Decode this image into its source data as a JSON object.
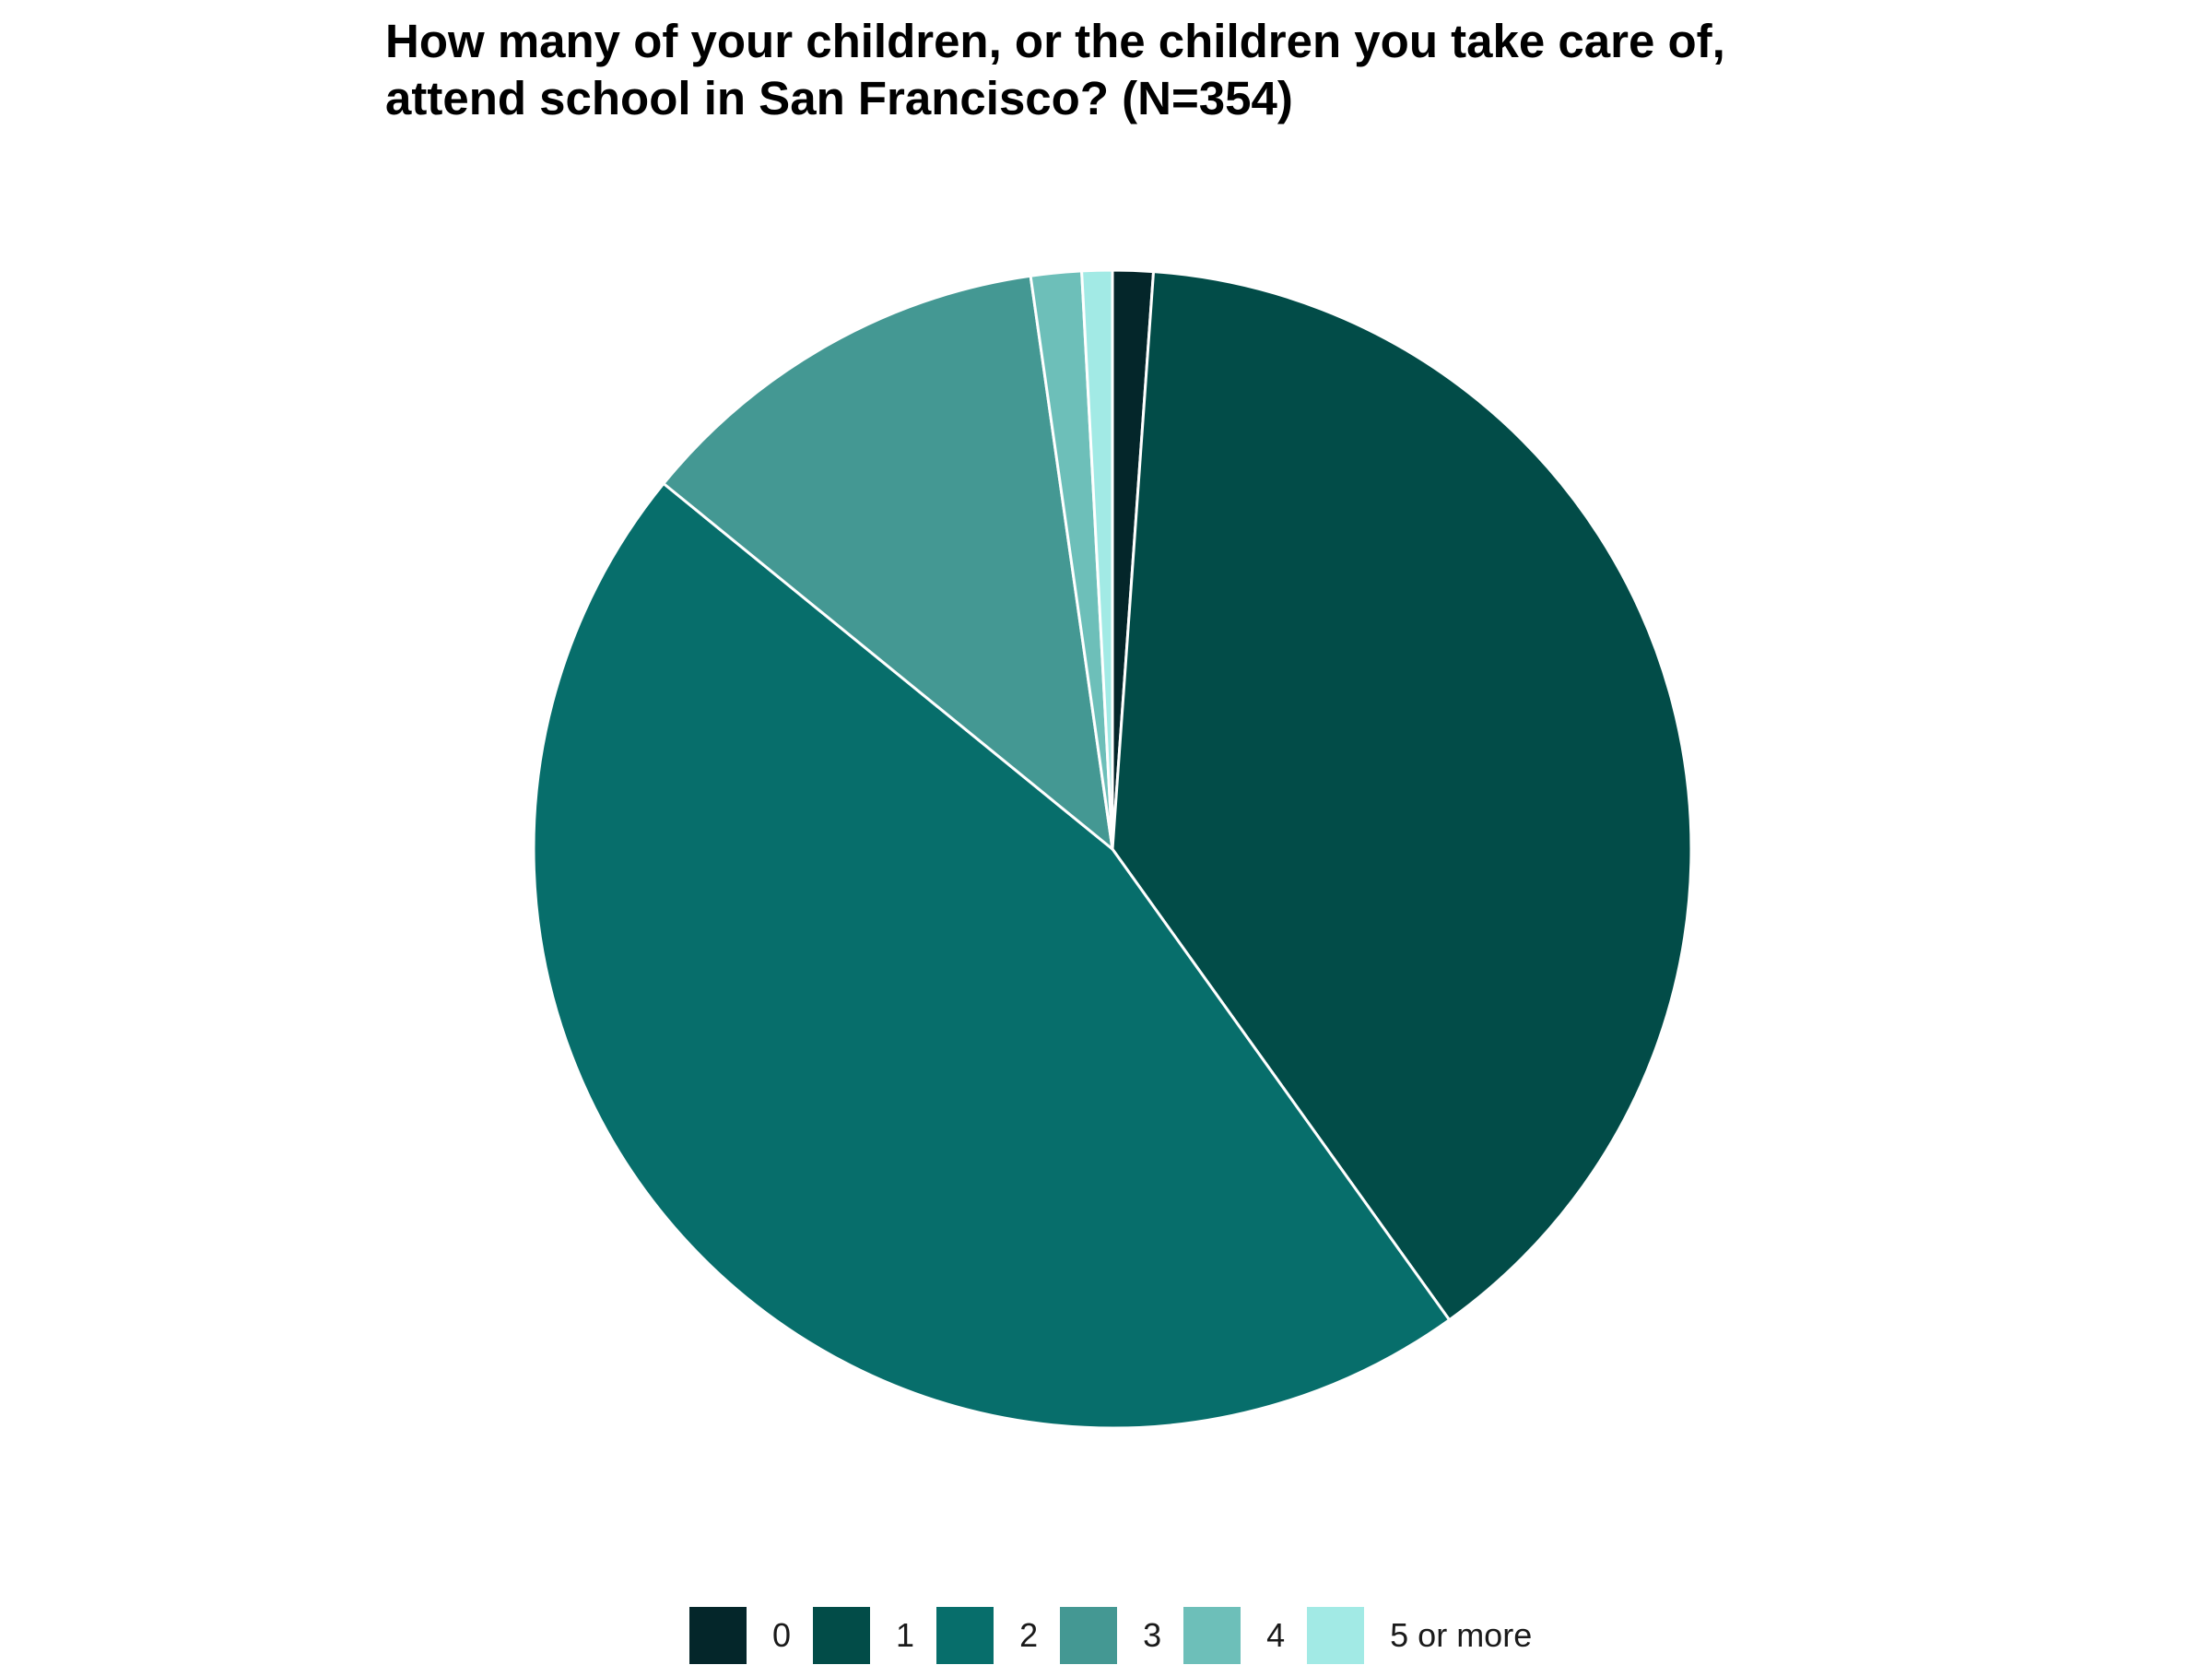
{
  "chart_data": {
    "type": "pie",
    "title_lines": [
      "How many of your children, or the children you take care of,",
      "attend school in San Francisco? (N=354)"
    ],
    "categories": [
      "0",
      "1",
      "2",
      "3",
      "4",
      "5 or more"
    ],
    "values": [
      4,
      138,
      162,
      42,
      5,
      3
    ],
    "colors": [
      "#04262a",
      "#024c48",
      "#076e6b",
      "#449893",
      "#6dbfb9",
      "#a2eae5"
    ],
    "legend_position": "bottom",
    "start_angle": "top",
    "direction": "clockwise"
  }
}
